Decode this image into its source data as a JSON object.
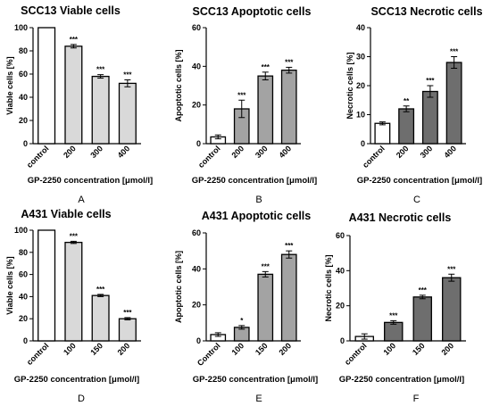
{
  "figure": {
    "xlabel": "GP-2250 concentration [μmol/l]"
  },
  "chart_data": [
    {
      "type": "bar",
      "panel_letter": "A",
      "title": "SCC13 Viable cells",
      "ylabel": "Viable cells [%]",
      "xlabel": "GP-2250 concentration [μmol/l]",
      "ylim": [
        0,
        100
      ],
      "yticks": [
        0,
        20,
        40,
        60,
        80,
        100
      ],
      "categories": [
        "control",
        "200",
        "300",
        "400"
      ],
      "values": [
        100,
        84,
        58,
        52
      ],
      "errors": [
        0,
        1.5,
        1.5,
        3
      ],
      "significance": [
        "",
        "***",
        "***",
        "***"
      ],
      "fills": [
        "#ffffff",
        "#d9d9d9",
        "#d9d9d9",
        "#d9d9d9"
      ],
      "grid": false
    },
    {
      "type": "bar",
      "panel_letter": "B",
      "title": "SCC13 Apoptotic cells",
      "ylabel": "Apoptotic cells [%]",
      "xlabel": "GP-2250 concentration [μmol/l]",
      "ylim": [
        0,
        60
      ],
      "yticks": [
        0,
        20,
        40,
        60
      ],
      "categories": [
        "control",
        "200",
        "300",
        "400"
      ],
      "values": [
        3.5,
        18,
        35,
        38
      ],
      "errors": [
        1,
        4.5,
        2,
        1.5
      ],
      "significance": [
        "",
        "***",
        "***",
        "***"
      ],
      "fills": [
        "#ffffff",
        "#a3a3a3",
        "#a3a3a3",
        "#a3a3a3"
      ],
      "grid": false
    },
    {
      "type": "bar",
      "panel_letter": "C",
      "title": "SCC13 Necrotic cells",
      "ylabel": "Necrotic cells [%]",
      "xlabel": "GP-2250 concentration [μmol/l]",
      "ylim": [
        0,
        40
      ],
      "yticks": [
        0,
        10,
        20,
        30,
        40
      ],
      "categories": [
        "control",
        "200",
        "300",
        "400"
      ],
      "values": [
        7,
        12,
        18,
        28
      ],
      "errors": [
        0.5,
        1,
        2,
        2
      ],
      "significance": [
        "",
        "**",
        "***",
        "***"
      ],
      "fills": [
        "#ffffff",
        "#6e6e6e",
        "#6e6e6e",
        "#6e6e6e"
      ],
      "grid": false
    },
    {
      "type": "bar",
      "panel_letter": "D",
      "title": "A431 Viable cells",
      "ylabel": "Viable cells [%]",
      "xlabel": "GP-2250 concentration [μmol/l]",
      "ylim": [
        0,
        100
      ],
      "yticks": [
        0,
        20,
        40,
        60,
        80,
        100
      ],
      "categories": [
        "control",
        "100",
        "150",
        "200"
      ],
      "values": [
        100,
        89,
        41,
        20
      ],
      "errors": [
        0,
        1,
        1,
        1
      ],
      "significance": [
        "",
        "***",
        "***",
        "***"
      ],
      "fills": [
        "#ffffff",
        "#d9d9d9",
        "#d9d9d9",
        "#d9d9d9"
      ],
      "grid": false
    },
    {
      "type": "bar",
      "panel_letter": "E",
      "title": "A431 Apoptotic cells",
      "ylabel": "Apoptotic cells [%]",
      "xlabel": "GP-2250 concentration [μmol/l]",
      "ylim": [
        0,
        60
      ],
      "yticks": [
        0,
        20,
        40,
        60
      ],
      "categories": [
        "Control",
        "100",
        "150",
        "200"
      ],
      "values": [
        3.5,
        7.5,
        37,
        48
      ],
      "errors": [
        1,
        1,
        1.5,
        2
      ],
      "significance": [
        "",
        "*",
        "***",
        "***"
      ],
      "fills": [
        "#ffffff",
        "#a3a3a3",
        "#a3a3a3",
        "#a3a3a3"
      ],
      "grid": false
    },
    {
      "type": "bar",
      "panel_letter": "F",
      "title": "A431 Necrotic cells",
      "ylabel": "Necrotic cells [%]",
      "xlabel": "GP-2250 concentration [μmol/l]",
      "ylim": [
        0,
        60
      ],
      "yticks": [
        0,
        20,
        40,
        60
      ],
      "categories": [
        "control",
        "100",
        "150",
        "200"
      ],
      "values": [
        2.5,
        10.5,
        25,
        36
      ],
      "errors": [
        1.5,
        1,
        1,
        2
      ],
      "significance": [
        "",
        "***",
        "***",
        "***"
      ],
      "fills": [
        "#ffffff",
        "#6e6e6e",
        "#6e6e6e",
        "#6e6e6e"
      ],
      "grid": false
    }
  ]
}
